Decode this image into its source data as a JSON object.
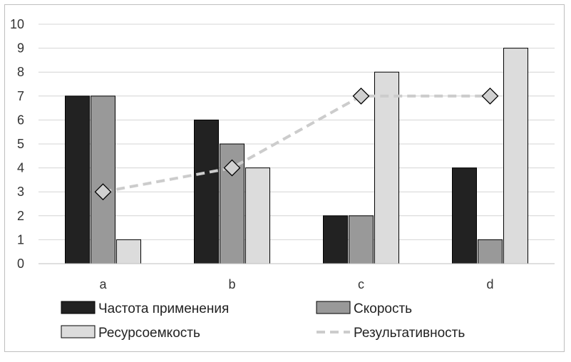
{
  "chart_data": {
    "type": "bar",
    "categories": [
      "a",
      "b",
      "c",
      "d"
    ],
    "series": [
      {
        "name": "Частота применения",
        "kind": "bar",
        "color": "#222222",
        "values": [
          7,
          6,
          2,
          4
        ]
      },
      {
        "name": "Скорость",
        "kind": "bar",
        "color": "#999999",
        "values": [
          7,
          5,
          2,
          1
        ]
      },
      {
        "name": "Ресурсоемкость",
        "kind": "bar",
        "color": "#dcdcdc",
        "values": [
          1,
          4,
          8,
          9
        ]
      },
      {
        "name": "Результативность",
        "kind": "line",
        "style": "dashed",
        "marker": "diamond",
        "color": "#cccccc",
        "values": [
          3,
          4,
          7,
          7
        ]
      }
    ],
    "yticks": [
      "0",
      "1",
      "2",
      "3",
      "4",
      "5",
      "6",
      "7",
      "8",
      "9",
      "10"
    ],
    "ylim": [
      0,
      10
    ],
    "grid": true,
    "legend_position": "bottom"
  }
}
